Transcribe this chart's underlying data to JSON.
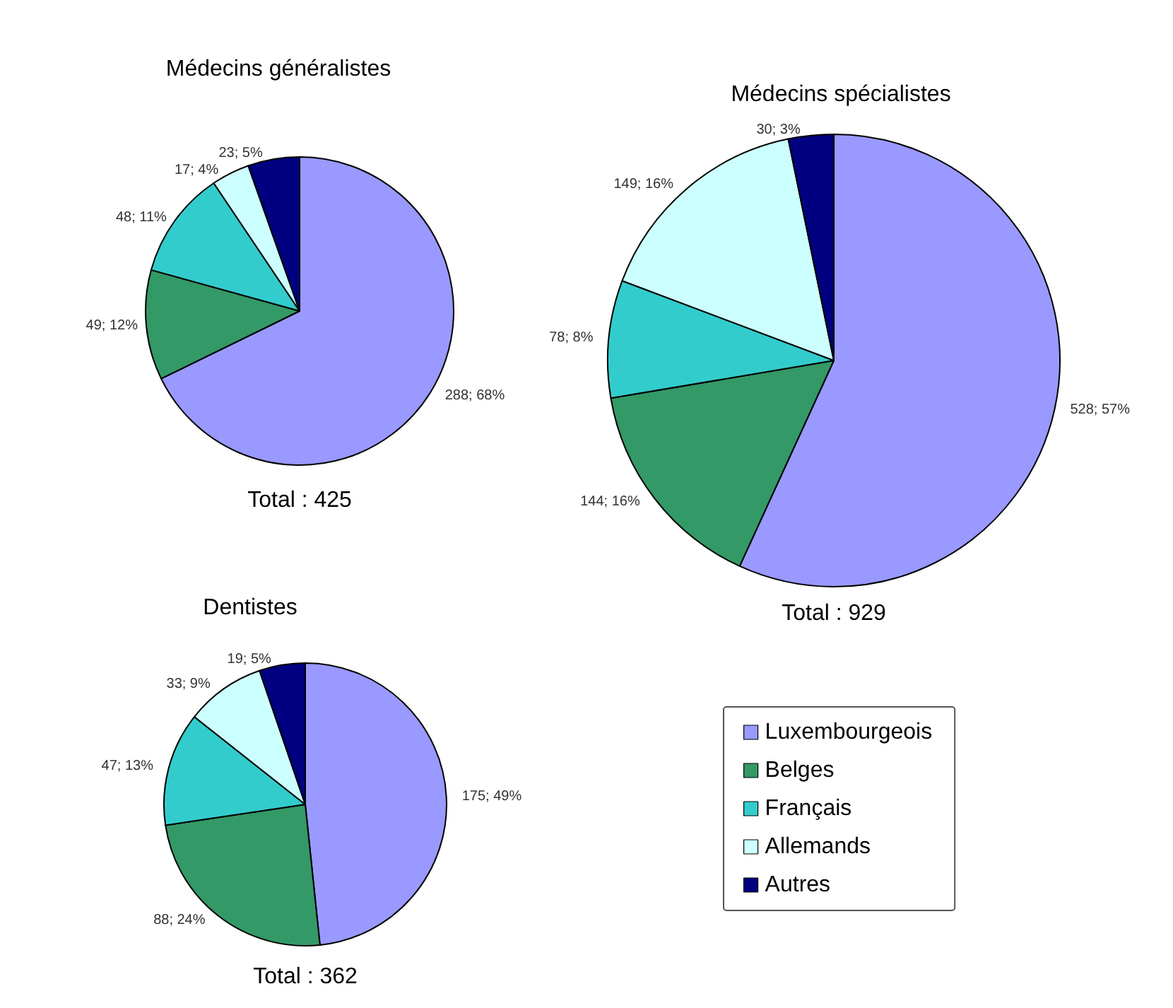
{
  "chart_data": {
    "type": "pie",
    "categories": [
      "Luxembourgeois",
      "Belges",
      "Français",
      "Allemands",
      "Autres"
    ],
    "colors": [
      "#9999ff",
      "#339966",
      "#33cccc",
      "#ccffff",
      "#000080"
    ],
    "series": [
      {
        "name": "Médecins généralistes",
        "values": [
          288,
          49,
          48,
          17,
          23
        ],
        "value_labels": [
          "288; 68%",
          "49; 12%",
          "48; 11%",
          "17; 4%",
          "23; 5%"
        ]
      },
      {
        "name": "Médecins spécialistes",
        "values": [
          528,
          144,
          78,
          149,
          30
        ],
        "value_labels": [
          "528; 57%",
          "144; 16%",
          "78; 8%",
          "149; 16%",
          "30; 3%"
        ]
      },
      {
        "name": "Dentistes",
        "values": [
          175,
          88,
          47,
          33,
          19
        ],
        "value_labels": [
          "175; 49%",
          "88; 24%",
          "47; 13%",
          "33; 9%",
          "19; 5%"
        ]
      }
    ],
    "annotations": [
      "Total : 425",
      "Total : 929",
      "Total : 362"
    ],
    "legend": "bottom right"
  }
}
